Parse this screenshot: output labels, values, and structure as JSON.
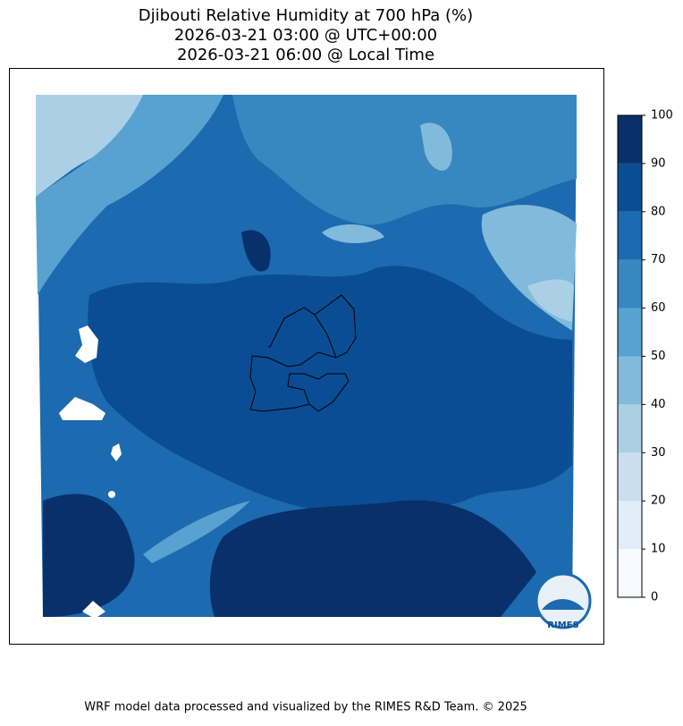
{
  "title": [
    "Djibouti Relative Humidity at 700 hPa (%)",
    "2026-03-21 03:00 @ UTC+00:00",
    "2026-03-21 06:00 @ Local Time"
  ],
  "colorbar": {
    "lim": [
      0,
      100
    ],
    "ticks": [
      0,
      10,
      20,
      30,
      40,
      50,
      60,
      70,
      80,
      90,
      100
    ],
    "colors": [
      "#f7fbff",
      "#e1edf8",
      "#cadef0",
      "#abd0e6",
      "#82badb",
      "#59a1cf",
      "#3787c0",
      "#1c6aaf",
      "#0b4d94",
      "#08306b"
    ]
  },
  "logo_text": "RIMES",
  "footer": "WRF model data processed and visualized by the RIMES R&D Team. © 2025"
}
